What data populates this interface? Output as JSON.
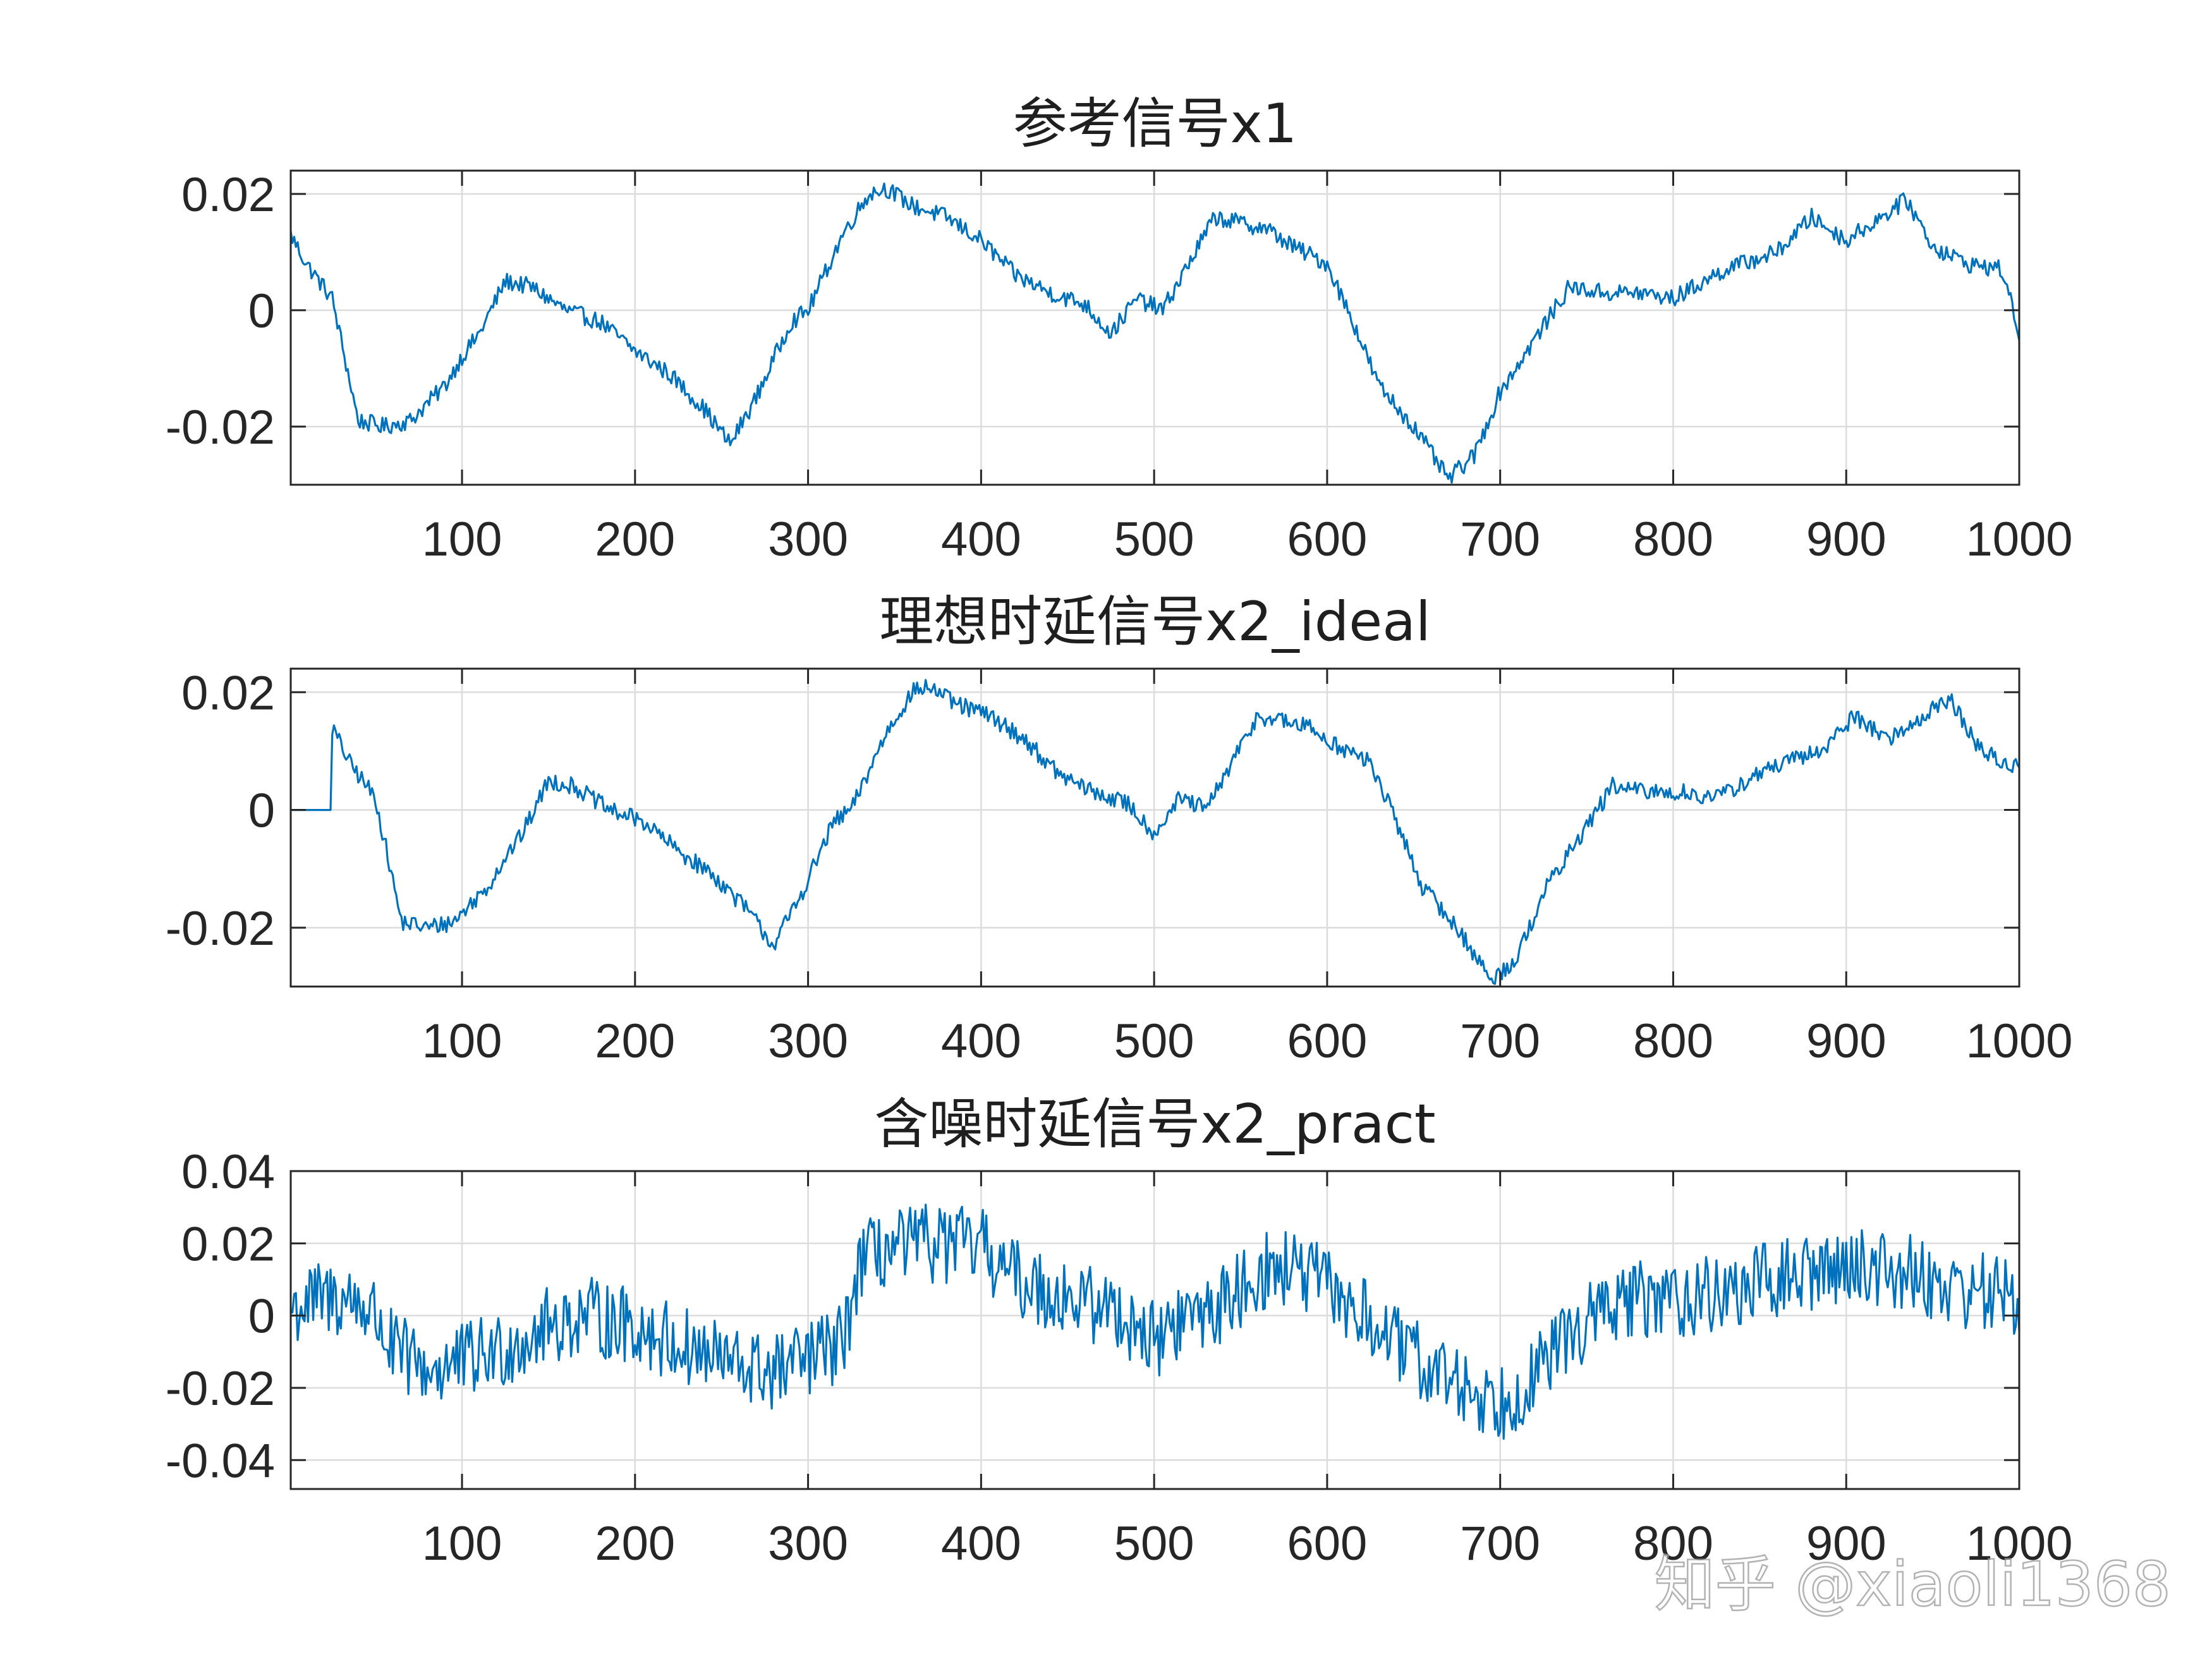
{
  "chart_data": [
    {
      "type": "line",
      "title": "参考信号x1",
      "xlim": [
        1,
        1000
      ],
      "ylim": [
        -0.03,
        0.024
      ],
      "xticks": [
        100,
        200,
        300,
        400,
        500,
        600,
        700,
        800,
        900,
        1000
      ],
      "xtick_labels": [
        "100",
        "200",
        "300",
        "400",
        "500",
        "600",
        "700",
        "800",
        "900",
        "1000"
      ],
      "yticks": [
        -0.02,
        0,
        0.02
      ],
      "ytick_labels": [
        "-0.02",
        "0",
        "0.02"
      ],
      "grid": true,
      "color": "#0072BD",
      "noise": 0.0015,
      "anchors": [
        [
          1,
          0.013
        ],
        [
          10,
          0.008
        ],
        [
          25,
          0.002
        ],
        [
          30,
          -0.005
        ],
        [
          40,
          -0.019
        ],
        [
          55,
          -0.02
        ],
        [
          70,
          -0.019
        ],
        [
          80,
          -0.016
        ],
        [
          90,
          -0.013
        ],
        [
          100,
          -0.008
        ],
        [
          110,
          -0.004
        ],
        [
          125,
          0.005
        ],
        [
          140,
          0.004
        ],
        [
          160,
          0.0
        ],
        [
          180,
          -0.002
        ],
        [
          200,
          -0.007
        ],
        [
          220,
          -0.011
        ],
        [
          240,
          -0.017
        ],
        [
          255,
          -0.023
        ],
        [
          270,
          -0.015
        ],
        [
          290,
          -0.002
        ],
        [
          300,
          0.0
        ],
        [
          320,
          0.013
        ],
        [
          335,
          0.02
        ],
        [
          345,
          0.021
        ],
        [
          360,
          0.018
        ],
        [
          380,
          0.016
        ],
        [
          400,
          0.012
        ],
        [
          420,
          0.006
        ],
        [
          440,
          0.003
        ],
        [
          460,
          0.001
        ],
        [
          475,
          -0.004
        ],
        [
          490,
          0.002
        ],
        [
          505,
          0.0
        ],
        [
          520,
          0.008
        ],
        [
          535,
          0.016
        ],
        [
          550,
          0.015
        ],
        [
          565,
          0.014
        ],
        [
          580,
          0.011
        ],
        [
          600,
          0.008
        ],
        [
          615,
          -0.002
        ],
        [
          630,
          -0.013
        ],
        [
          650,
          -0.02
        ],
        [
          670,
          -0.029
        ],
        [
          685,
          -0.025
        ],
        [
          700,
          -0.014
        ],
        [
          720,
          -0.005
        ],
        [
          740,
          0.004
        ],
        [
          760,
          0.003
        ],
        [
          780,
          0.003
        ],
        [
          800,
          0.002
        ],
        [
          830,
          0.007
        ],
        [
          860,
          0.01
        ],
        [
          880,
          0.016
        ],
        [
          900,
          0.012
        ],
        [
          920,
          0.016
        ],
        [
          935,
          0.019
        ],
        [
          950,
          0.011
        ],
        [
          970,
          0.008
        ],
        [
          990,
          0.007
        ],
        [
          1000,
          -0.004
        ]
      ]
    },
    {
      "type": "line",
      "title": "理想时延信号x2_ideal",
      "xlim": [
        1,
        1000
      ],
      "ylim": [
        -0.03,
        0.024
      ],
      "xticks": [
        100,
        200,
        300,
        400,
        500,
        600,
        700,
        800,
        900,
        1000
      ],
      "xtick_labels": [
        "100",
        "200",
        "300",
        "400",
        "500",
        "600",
        "700",
        "800",
        "900",
        "1000"
      ],
      "yticks": [
        -0.02,
        0,
        0.02
      ],
      "ytick_labels": [
        "-0.02",
        "0",
        "0.02"
      ],
      "grid": true,
      "color": "#0072BD",
      "noise": 0.0015,
      "anchors": [
        [
          1,
          0.0
        ],
        [
          24,
          0.0
        ],
        [
          25,
          0.014
        ],
        [
          35,
          0.008
        ],
        [
          50,
          0.002
        ],
        [
          55,
          -0.005
        ],
        [
          65,
          -0.019
        ],
        [
          80,
          -0.02
        ],
        [
          95,
          -0.019
        ],
        [
          105,
          -0.016
        ],
        [
          115,
          -0.013
        ],
        [
          125,
          -0.008
        ],
        [
          135,
          -0.004
        ],
        [
          150,
          0.005
        ],
        [
          165,
          0.004
        ],
        [
          185,
          0.0
        ],
        [
          205,
          -0.002
        ],
        [
          225,
          -0.007
        ],
        [
          245,
          -0.011
        ],
        [
          265,
          -0.017
        ],
        [
          280,
          -0.023
        ],
        [
          295,
          -0.015
        ],
        [
          315,
          -0.002
        ],
        [
          325,
          0.0
        ],
        [
          345,
          0.013
        ],
        [
          360,
          0.02
        ],
        [
          370,
          0.021
        ],
        [
          385,
          0.018
        ],
        [
          405,
          0.016
        ],
        [
          425,
          0.012
        ],
        [
          445,
          0.006
        ],
        [
          465,
          0.003
        ],
        [
          485,
          0.001
        ],
        [
          500,
          -0.004
        ],
        [
          515,
          0.002
        ],
        [
          530,
          0.0
        ],
        [
          545,
          0.008
        ],
        [
          560,
          0.016
        ],
        [
          575,
          0.015
        ],
        [
          590,
          0.014
        ],
        [
          605,
          0.011
        ],
        [
          625,
          0.008
        ],
        [
          640,
          -0.002
        ],
        [
          655,
          -0.013
        ],
        [
          675,
          -0.02
        ],
        [
          695,
          -0.029
        ],
        [
          710,
          -0.025
        ],
        [
          725,
          -0.014
        ],
        [
          745,
          -0.005
        ],
        [
          765,
          0.004
        ],
        [
          785,
          0.003
        ],
        [
          805,
          0.003
        ],
        [
          825,
          0.002
        ],
        [
          855,
          0.007
        ],
        [
          885,
          0.01
        ],
        [
          905,
          0.016
        ],
        [
          925,
          0.012
        ],
        [
          945,
          0.016
        ],
        [
          960,
          0.019
        ],
        [
          975,
          0.011
        ],
        [
          990,
          0.008
        ],
        [
          1000,
          0.007
        ]
      ]
    },
    {
      "type": "line",
      "title": "含噪时延信号x2_pract",
      "xlim": [
        1,
        1000
      ],
      "ylim": [
        -0.048,
        0.04
      ],
      "xticks": [
        100,
        200,
        300,
        400,
        500,
        600,
        700,
        800,
        900,
        1000
      ],
      "xtick_labels": [
        "100",
        "200",
        "300",
        "400",
        "500",
        "600",
        "700",
        "800",
        "900",
        "1000"
      ],
      "yticks": [
        -0.04,
        -0.02,
        0,
        0.02,
        0.04
      ],
      "ytick_labels": [
        "-0.04",
        "-0.02",
        "0",
        "0.02",
        "0.04"
      ],
      "grid": true,
      "color": "#0072BD",
      "noise": 0.011,
      "anchors": [
        [
          1,
          0.002
        ],
        [
          25,
          0.005
        ],
        [
          40,
          0.004
        ],
        [
          50,
          0.0
        ],
        [
          60,
          -0.01
        ],
        [
          80,
          -0.015
        ],
        [
          100,
          -0.013
        ],
        [
          120,
          -0.01
        ],
        [
          150,
          -0.003
        ],
        [
          170,
          0.0
        ],
        [
          200,
          -0.003
        ],
        [
          230,
          -0.009
        ],
        [
          260,
          -0.014
        ],
        [
          280,
          -0.016
        ],
        [
          300,
          -0.012
        ],
        [
          320,
          -0.008
        ],
        [
          330,
          0.015
        ],
        [
          345,
          0.018
        ],
        [
          370,
          0.02
        ],
        [
          400,
          0.019
        ],
        [
          420,
          0.01
        ],
        [
          450,
          0.005
        ],
        [
          480,
          0.001
        ],
        [
          500,
          -0.007
        ],
        [
          520,
          0.0
        ],
        [
          540,
          0.003
        ],
        [
          560,
          0.012
        ],
        [
          580,
          0.013
        ],
        [
          600,
          0.008
        ],
        [
          620,
          0.0
        ],
        [
          650,
          -0.012
        ],
        [
          680,
          -0.02
        ],
        [
          700,
          -0.024
        ],
        [
          720,
          -0.017
        ],
        [
          740,
          -0.005
        ],
        [
          770,
          0.004
        ],
        [
          800,
          0.005
        ],
        [
          830,
          0.006
        ],
        [
          860,
          0.01
        ],
        [
          880,
          0.012
        ],
        [
          900,
          0.014
        ],
        [
          930,
          0.013
        ],
        [
          960,
          0.008
        ],
        [
          990,
          0.006
        ],
        [
          1000,
          0.002
        ]
      ]
    }
  ],
  "watermark": "知乎 @xiaoli1368"
}
